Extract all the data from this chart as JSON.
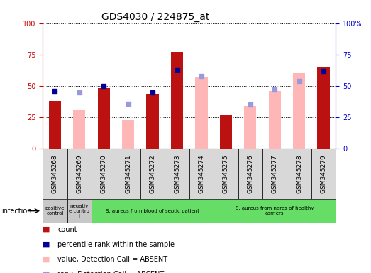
{
  "title": "GDS4030 / 224875_at",
  "samples": [
    "GSM345268",
    "GSM345269",
    "GSM345270",
    "GSM345271",
    "GSM345272",
    "GSM345273",
    "GSM345274",
    "GSM345275",
    "GSM345276",
    "GSM345277",
    "GSM345278",
    "GSM345279"
  ],
  "count": [
    38,
    null,
    48,
    null,
    44,
    77,
    null,
    27,
    null,
    null,
    null,
    65
  ],
  "percentile_rank": [
    46,
    null,
    50,
    null,
    45,
    63,
    null,
    null,
    null,
    null,
    null,
    62
  ],
  "value_absent": [
    null,
    31,
    null,
    23,
    null,
    null,
    57,
    null,
    34,
    46,
    61,
    null
  ],
  "rank_absent": [
    null,
    45,
    null,
    36,
    null,
    null,
    58,
    null,
    35,
    47,
    54,
    null
  ],
  "groups": [
    {
      "label": "positive\ncontrol",
      "start": 0,
      "end": 1,
      "color": "#c8c8c8"
    },
    {
      "label": "negativ\ne contro\nl",
      "start": 1,
      "end": 2,
      "color": "#c8c8c8"
    },
    {
      "label": "S. aureus from blood of septic patient",
      "start": 2,
      "end": 7,
      "color": "#66dd66"
    },
    {
      "label": "S. aureus from nares of healthy\ncarriers",
      "start": 7,
      "end": 12,
      "color": "#66dd66"
    }
  ],
  "bar_color_count": "#bb1111",
  "bar_color_value_absent": "#ffb6b6",
  "dot_color_rank": "#000099",
  "dot_color_rank_absent": "#9999dd",
  "left_axis_color": "#cc0000",
  "right_axis_color": "#0000cc",
  "cell_bg_color": "#d8d8d8",
  "bar_width": 0.5
}
